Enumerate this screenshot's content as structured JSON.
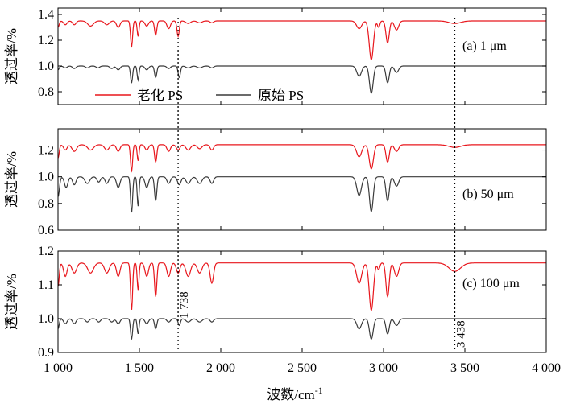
{
  "chart_data": {
    "type": "line",
    "xlabel": "波数/cm",
    "xlabel_sup": "-1",
    "xlim": [
      1000,
      4000
    ],
    "xticks": [
      1000,
      1500,
      2000,
      2500,
      3000,
      3500,
      4000
    ],
    "xtick_labels": [
      "1 000",
      "1 500",
      "2 000",
      "2 500",
      "3 000",
      "3 500",
      "4 000"
    ],
    "legend": {
      "placement": "inside-top-left (panel a)",
      "entries": [
        {
          "label": "老化 PS",
          "color": "#e8161c"
        },
        {
          "label": "原始 PS",
          "color": "#3a3a3a"
        }
      ]
    },
    "annotations": [
      {
        "x": 1738,
        "label": "1 738"
      },
      {
        "x": 3438,
        "label": "3 438"
      }
    ],
    "panels": [
      {
        "label": "(a) 1 μm",
        "ylabel": "透过率/%",
        "ylim": [
          0.7,
          1.45
        ],
        "yticks": [
          0.8,
          1.0,
          1.2,
          1.4
        ],
        "ytick_labels": [
          "0.8",
          "1.0",
          "1.2",
          "1.4"
        ],
        "series": [
          {
            "name": "老化 PS",
            "baseline": 1.35,
            "bumps": [
              [
                1000,
                -0.05,
                10
              ],
              [
                1045,
                -0.03,
                15
              ],
              [
                1100,
                -0.03,
                15
              ],
              [
                1200,
                -0.04,
                25
              ],
              [
                1300,
                -0.03,
                20
              ],
              [
                1370,
                -0.05,
                15
              ],
              [
                1452,
                -0.2,
                9
              ],
              [
                1492,
                -0.12,
                8
              ],
              [
                1545,
                -0.04,
                15
              ],
              [
                1600,
                -0.11,
                10
              ],
              [
                1680,
                -0.06,
                15
              ],
              [
                1738,
                -0.12,
                10
              ],
              [
                1800,
                -0.02,
                20
              ],
              [
                1870,
                -0.015,
                20
              ],
              [
                1945,
                -0.015,
                15
              ],
              [
                2850,
                -0.06,
                22
              ],
              [
                2925,
                -0.3,
                18
              ],
              [
                2970,
                -0.05,
                10
              ],
              [
                3025,
                -0.17,
                14
              ],
              [
                3080,
                -0.07,
                18
              ],
              [
                3438,
                -0.02,
                50
              ]
            ]
          },
          {
            "name": "原始 PS",
            "baseline": 1.0,
            "bumps": [
              [
                1000,
                -0.03,
                10
              ],
              [
                1045,
                -0.015,
                15
              ],
              [
                1100,
                -0.02,
                15
              ],
              [
                1180,
                -0.015,
                15
              ],
              [
                1245,
                -0.015,
                15
              ],
              [
                1330,
                -0.02,
                15
              ],
              [
                1370,
                -0.03,
                15
              ],
              [
                1452,
                -0.13,
                9
              ],
              [
                1492,
                -0.11,
                8
              ],
              [
                1545,
                -0.03,
                15
              ],
              [
                1600,
                -0.09,
                10
              ],
              [
                1680,
                -0.02,
                15
              ],
              [
                1745,
                -0.09,
                10
              ],
              [
                1800,
                -0.015,
                20
              ],
              [
                1870,
                -0.015,
                20
              ],
              [
                1945,
                -0.015,
                15
              ],
              [
                2850,
                -0.08,
                20
              ],
              [
                2925,
                -0.21,
                16
              ],
              [
                3025,
                -0.13,
                14
              ],
              [
                3080,
                -0.05,
                18
              ]
            ]
          }
        ]
      },
      {
        "label": "(b) 50 μm",
        "ylabel": "透过率/%",
        "ylim": [
          0.6,
          1.36
        ],
        "yticks": [
          0.6,
          0.8,
          1.0,
          1.2
        ],
        "ytick_labels": [
          "0.6",
          "0.8",
          "1.0",
          "1.2"
        ],
        "series": [
          {
            "name": "老化 PS",
            "baseline": 1.24,
            "bumps": [
              [
                1000,
                -0.1,
                10
              ],
              [
                1045,
                -0.04,
                15
              ],
              [
                1100,
                -0.05,
                20
              ],
              [
                1200,
                -0.04,
                25
              ],
              [
                1300,
                -0.04,
                20
              ],
              [
                1370,
                -0.05,
                15
              ],
              [
                1452,
                -0.2,
                9
              ],
              [
                1492,
                -0.12,
                8
              ],
              [
                1545,
                -0.04,
                15
              ],
              [
                1600,
                -0.13,
                10
              ],
              [
                1680,
                -0.05,
                15
              ],
              [
                1738,
                -0.04,
                15
              ],
              [
                1800,
                -0.04,
                20
              ],
              [
                1870,
                -0.03,
                20
              ],
              [
                1945,
                -0.04,
                15
              ],
              [
                2850,
                -0.09,
                22
              ],
              [
                2925,
                -0.18,
                18
              ],
              [
                3025,
                -0.13,
                14
              ],
              [
                3080,
                -0.05,
                18
              ],
              [
                3438,
                -0.02,
                50
              ]
            ]
          },
          {
            "name": "原始 PS",
            "baseline": 1.0,
            "bumps": [
              [
                1000,
                -0.15,
                12
              ],
              [
                1050,
                -0.08,
                15
              ],
              [
                1100,
                -0.06,
                15
              ],
              [
                1180,
                -0.05,
                20
              ],
              [
                1250,
                -0.04,
                15
              ],
              [
                1300,
                -0.05,
                15
              ],
              [
                1370,
                -0.08,
                15
              ],
              [
                1452,
                -0.27,
                9
              ],
              [
                1492,
                -0.22,
                8
              ],
              [
                1545,
                -0.08,
                15
              ],
              [
                1600,
                -0.18,
                10
              ],
              [
                1680,
                -0.05,
                15
              ],
              [
                1745,
                -0.06,
                15
              ],
              [
                1800,
                -0.05,
                20
              ],
              [
                1870,
                -0.05,
                20
              ],
              [
                1945,
                -0.05,
                15
              ],
              [
                2850,
                -0.14,
                20
              ],
              [
                2925,
                -0.26,
                16
              ],
              [
                3025,
                -0.18,
                14
              ],
              [
                3080,
                -0.07,
                18
              ]
            ]
          }
        ]
      },
      {
        "label": "(c) 100 μm",
        "ylabel": "透过率/%",
        "ylim": [
          0.9,
          1.2
        ],
        "yticks": [
          0.9,
          1.0,
          1.1,
          1.2
        ],
        "ytick_labels": [
          "0.9",
          "1.0",
          "1.1",
          "1.2"
        ],
        "series": [
          {
            "name": "老化 PS",
            "baseline": 1.165,
            "bumps": [
              [
                1000,
                -0.07,
                10
              ],
              [
                1045,
                -0.04,
                15
              ],
              [
                1100,
                -0.03,
                20
              ],
              [
                1200,
                -0.03,
                25
              ],
              [
                1300,
                -0.03,
                20
              ],
              [
                1370,
                -0.04,
                15
              ],
              [
                1452,
                -0.14,
                9
              ],
              [
                1492,
                -0.08,
                8
              ],
              [
                1545,
                -0.04,
                15
              ],
              [
                1600,
                -0.1,
                10
              ],
              [
                1680,
                -0.04,
                15
              ],
              [
                1738,
                -0.03,
                15
              ],
              [
                1800,
                -0.04,
                20
              ],
              [
                1870,
                -0.03,
                20
              ],
              [
                1945,
                -0.06,
                15
              ],
              [
                2850,
                -0.06,
                22
              ],
              [
                2925,
                -0.14,
                18
              ],
              [
                2970,
                -0.02,
                10
              ],
              [
                3025,
                -0.1,
                14
              ],
              [
                3080,
                -0.04,
                18
              ],
              [
                3438,
                -0.025,
                50
              ]
            ]
          },
          {
            "name": "原始 PS",
            "baseline": 1.0,
            "bumps": [
              [
                1000,
                -0.03,
                10
              ],
              [
                1045,
                -0.015,
                15
              ],
              [
                1100,
                -0.015,
                15
              ],
              [
                1180,
                -0.01,
                15
              ],
              [
                1250,
                -0.01,
                15
              ],
              [
                1330,
                -0.01,
                15
              ],
              [
                1370,
                -0.015,
                15
              ],
              [
                1452,
                -0.06,
                9
              ],
              [
                1492,
                -0.045,
                8
              ],
              [
                1545,
                -0.015,
                15
              ],
              [
                1600,
                -0.03,
                10
              ],
              [
                1680,
                -0.01,
                15
              ],
              [
                1745,
                -0.02,
                10
              ],
              [
                1800,
                -0.01,
                20
              ],
              [
                1870,
                -0.01,
                20
              ],
              [
                1945,
                -0.01,
                15
              ],
              [
                2850,
                -0.03,
                20
              ],
              [
                2925,
                -0.06,
                16
              ],
              [
                3025,
                -0.045,
                14
              ],
              [
                3080,
                -0.02,
                18
              ]
            ]
          }
        ]
      }
    ]
  }
}
